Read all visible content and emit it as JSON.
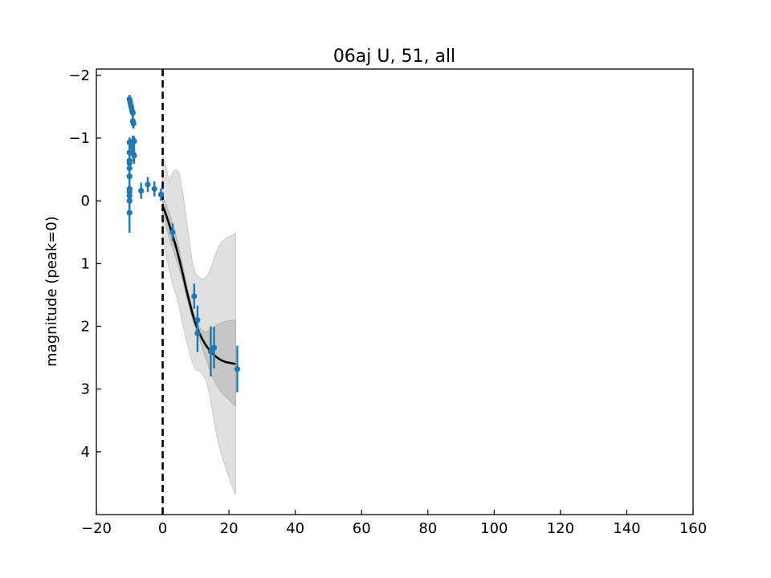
{
  "chart_data": {
    "type": "scatter",
    "title": "06aj U, 51, all",
    "xlabel": "",
    "ylabel": "magnitude (peak=0)",
    "xlim": [
      -20,
      160
    ],
    "ylim": [
      5.0,
      -2.1
    ],
    "y_inverted": true,
    "grid": false,
    "x_ticks": [
      -20,
      0,
      20,
      40,
      60,
      80,
      100,
      120,
      140,
      160
    ],
    "x_tick_labels": [
      "−20",
      "0",
      "20",
      "40",
      "60",
      "80",
      "100",
      "120",
      "140",
      "160"
    ],
    "y_ticks": [
      -2,
      -1,
      0,
      1,
      2,
      3,
      4
    ],
    "y_tick_labels": [
      "−2",
      "−1",
      "0",
      "1",
      "2",
      "3",
      "4"
    ],
    "vertical_line": {
      "x": 0,
      "style": "dashed",
      "color": "#000000"
    },
    "colors": {
      "points": "#1f77b4",
      "model_line": "#000000",
      "inner_band": "#bdbdbd",
      "outer_band": "#e0e0e0"
    },
    "points": [
      {
        "x": -10.0,
        "y": -1.62,
        "yerr": 0.07
      },
      {
        "x": -9.8,
        "y": -1.57,
        "yerr": 0.07
      },
      {
        "x": -9.6,
        "y": -1.52,
        "yerr": 0.07
      },
      {
        "x": -9.4,
        "y": -1.48,
        "yerr": 0.07
      },
      {
        "x": -9.2,
        "y": -1.43,
        "yerr": 0.07
      },
      {
        "x": -9.0,
        "y": -1.4,
        "yerr": 0.07
      },
      {
        "x": -9.0,
        "y": -1.27,
        "yerr": 0.1
      },
      {
        "x": -8.8,
        "y": -1.23,
        "yerr": 0.08
      },
      {
        "x": -10.0,
        "y": -0.93,
        "yerr": 0.08
      },
      {
        "x": -9.0,
        "y": -0.95,
        "yerr": 0.09
      },
      {
        "x": -8.6,
        "y": -0.95,
        "yerr": 0.08
      },
      {
        "x": -9.2,
        "y": -0.86,
        "yerr": 0.1
      },
      {
        "x": -10.0,
        "y": -0.77,
        "yerr": 0.1
      },
      {
        "x": -8.8,
        "y": -0.74,
        "yerr": 0.12
      },
      {
        "x": -8.6,
        "y": -0.72,
        "yerr": 0.13
      },
      {
        "x": -10.0,
        "y": -0.64,
        "yerr": 0.1
      },
      {
        "x": -10.0,
        "y": -0.6,
        "yerr": 0.1
      },
      {
        "x": -10.0,
        "y": -0.52,
        "yerr": 0.1
      },
      {
        "x": -10.0,
        "y": -0.39,
        "yerr": 0.12
      },
      {
        "x": -10.0,
        "y": -0.19,
        "yerr": 0.12
      },
      {
        "x": -10.0,
        "y": -0.14,
        "yerr": 0.12
      },
      {
        "x": -10.0,
        "y": -0.08,
        "yerr": 0.12
      },
      {
        "x": -10.0,
        "y": 0.0,
        "yerr": 0.12
      },
      {
        "x": -10.0,
        "y": 0.19,
        "yerr": 0.32
      },
      {
        "x": -6.5,
        "y": -0.16,
        "yerr": 0.13
      },
      {
        "x": -4.5,
        "y": -0.26,
        "yerr": 0.12
      },
      {
        "x": -2.5,
        "y": -0.19,
        "yerr": 0.12
      },
      {
        "x": -0.5,
        "y": -0.1,
        "yerr": 0.1
      },
      {
        "x": 3.0,
        "y": 0.5,
        "yerr": 0.14
      },
      {
        "x": 9.5,
        "y": 1.52,
        "yerr": 0.2
      },
      {
        "x": 10.5,
        "y": 1.9,
        "yerr": 0.23
      },
      {
        "x": 10.5,
        "y": 2.11,
        "yerr": 0.3
      },
      {
        "x": 14.5,
        "y": 2.4,
        "yerr": 0.4
      },
      {
        "x": 15.5,
        "y": 2.34,
        "yerr": 0.33
      },
      {
        "x": 22.5,
        "y": 2.68,
        "yerr": 0.37
      }
    ],
    "model": {
      "x": [
        0,
        1,
        2,
        3,
        4,
        5,
        6,
        7,
        8,
        9,
        10,
        11,
        12,
        13,
        14,
        15,
        16,
        17,
        18,
        19,
        20,
        21,
        22
      ],
      "y": [
        0.08,
        0.22,
        0.38,
        0.55,
        0.73,
        0.93,
        1.15,
        1.38,
        1.6,
        1.8,
        1.97,
        2.1,
        2.21,
        2.3,
        2.37,
        2.43,
        2.48,
        2.52,
        2.55,
        2.57,
        2.58,
        2.59,
        2.6
      ],
      "inner_lower": [
        -0.05,
        0.05,
        0.2,
        0.36,
        0.55,
        0.78,
        1.02,
        1.27,
        1.51,
        1.72,
        1.89,
        2.01,
        2.07,
        2.09,
        2.07,
        2.03,
        1.99,
        1.96,
        1.94,
        1.92,
        1.91,
        1.9,
        1.9
      ],
      "inner_upper": [
        0.2,
        0.4,
        0.58,
        0.75,
        0.92,
        1.08,
        1.27,
        1.48,
        1.69,
        1.89,
        2.06,
        2.2,
        2.35,
        2.51,
        2.66,
        2.8,
        2.91,
        3.0,
        3.07,
        3.12,
        3.17,
        3.22,
        3.27
      ],
      "outer_lower": [
        -0.7,
        -0.55,
        -0.3,
        -0.45,
        -0.5,
        -0.44,
        -0.15,
        0.22,
        0.65,
        1.0,
        1.17,
        1.22,
        1.25,
        1.23,
        1.15,
        1.0,
        0.85,
        0.72,
        0.65,
        0.6,
        0.57,
        0.55,
        0.52
      ],
      "outer_upper": [
        0.55,
        0.85,
        1.1,
        1.33,
        1.5,
        1.7,
        1.95,
        2.18,
        2.4,
        2.58,
        2.69,
        2.71,
        2.76,
        2.85,
        3.05,
        3.35,
        3.65,
        3.9,
        4.1,
        4.25,
        4.4,
        4.55,
        4.68
      ]
    }
  }
}
